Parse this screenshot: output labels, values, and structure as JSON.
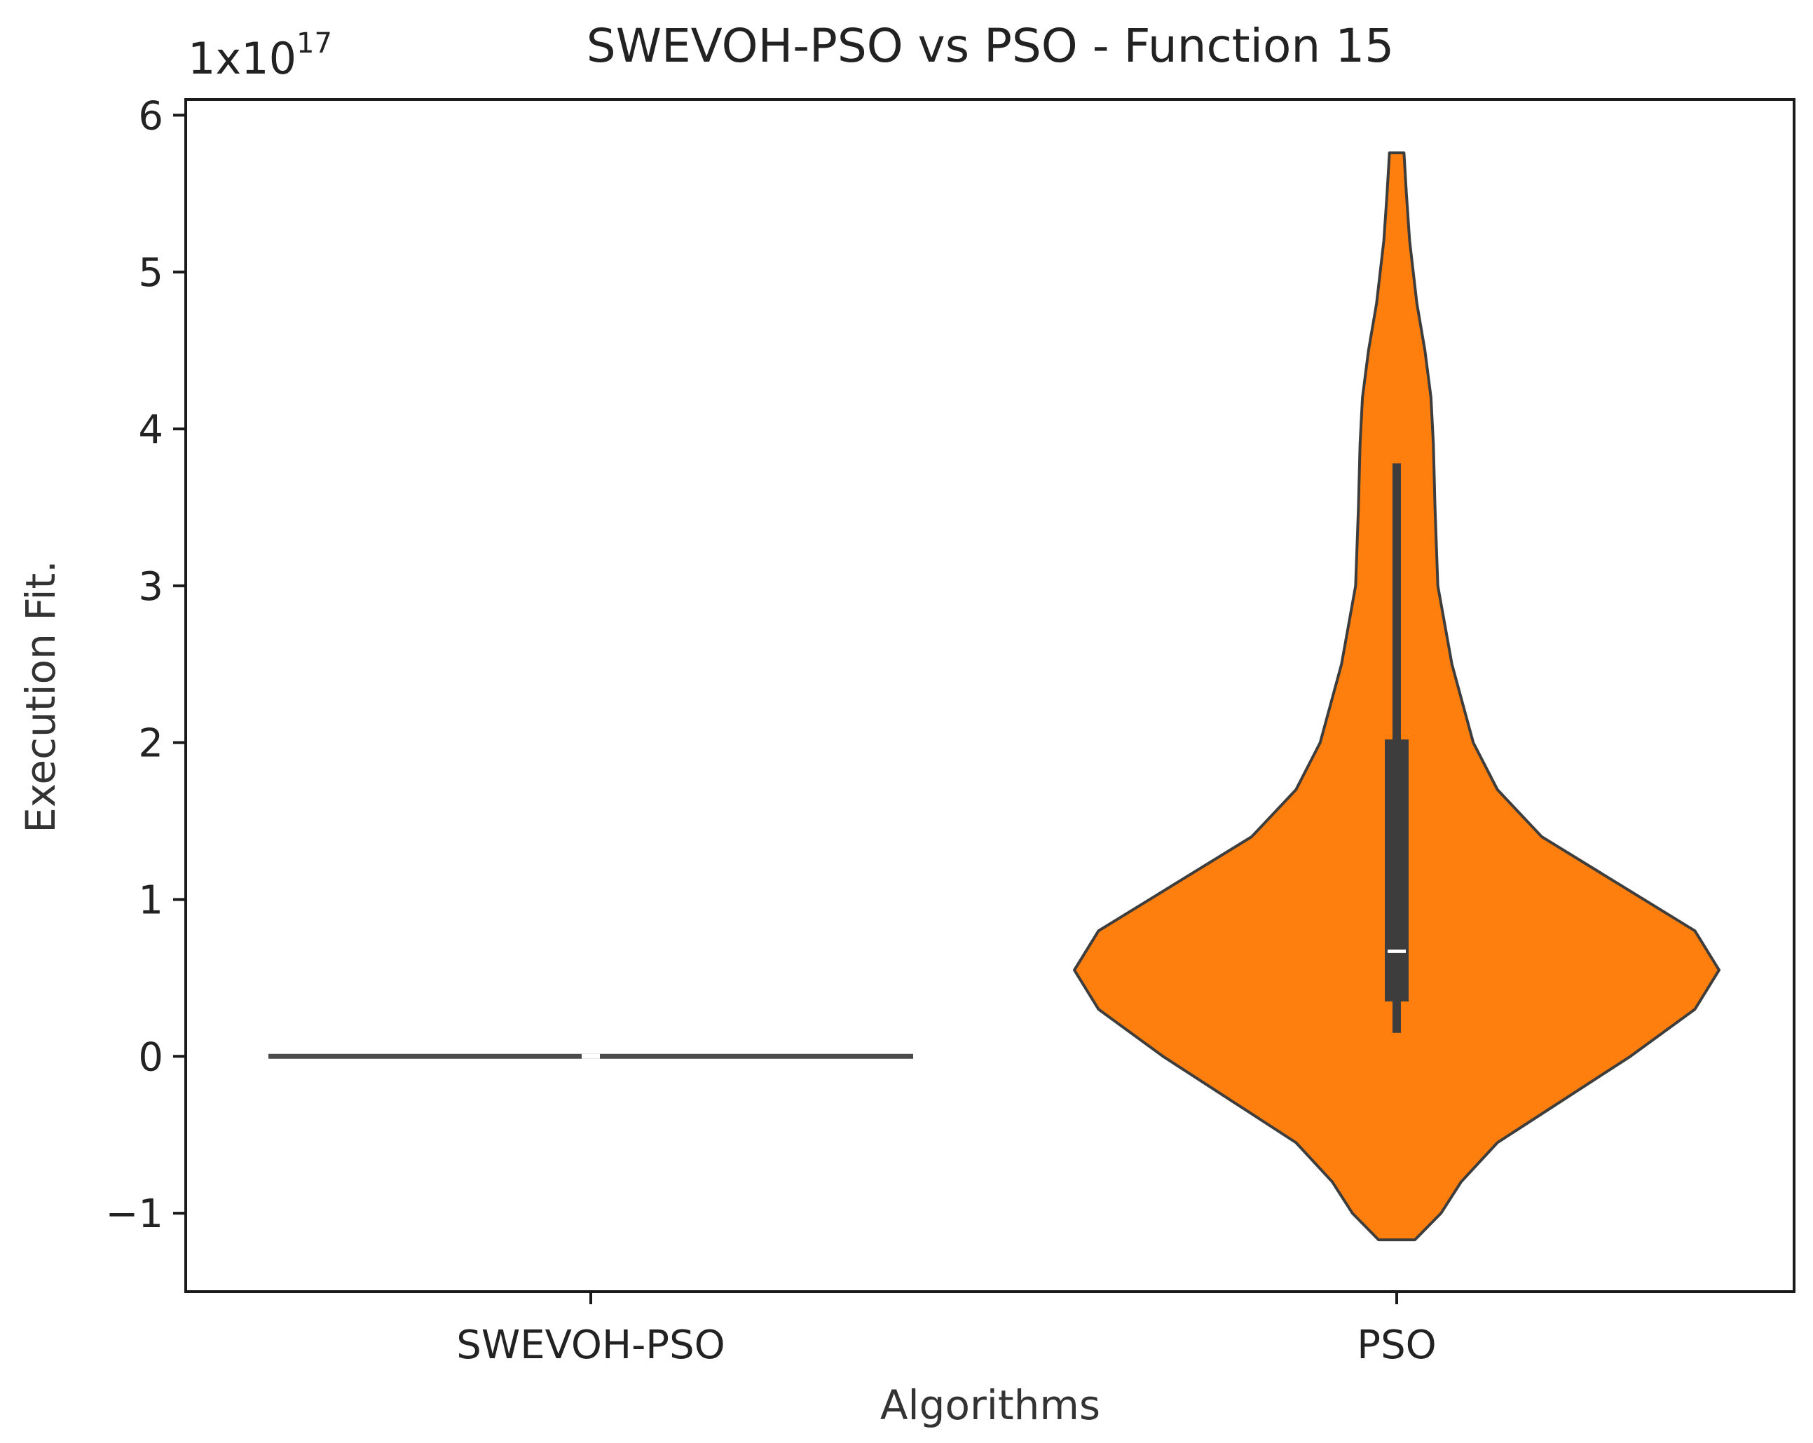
{
  "chart_data": {
    "type": "violin",
    "title": "SWEVOH-PSO vs PSO - Function 15",
    "xlabel": "Algorithms",
    "ylabel": "Execution Fit.",
    "y_multiplier_base": "1x10",
    "y_multiplier_exponent": "17",
    "ylim": [
      -1.5,
      6.1
    ],
    "yticks": [
      -1,
      0,
      1,
      2,
      3,
      4,
      5,
      6
    ],
    "ytick_labels": [
      "−1",
      "0",
      "1",
      "2",
      "3",
      "4",
      "5",
      "6"
    ],
    "categories": [
      "SWEVOH-PSO",
      "PSO"
    ],
    "series": [
      {
        "name": "SWEVOH-PSO",
        "color": "#ffffff",
        "edge_color": "#4a4a4a",
        "min": 0,
        "q1": 0,
        "median": 0,
        "q3": 0,
        "max": 0,
        "violin_min": 0,
        "violin_max": 0,
        "density_profile": [
          {
            "y": 0,
            "w": 0.8
          }
        ]
      },
      {
        "name": "PSO",
        "color": "#ff7f0e",
        "edge_color": "#3d3d3d",
        "min": 0.15,
        "q1": 0.35,
        "median": 0.67,
        "q3": 2.02,
        "max": 3.78,
        "violin_min": -1.17,
        "violin_max": 5.76,
        "density_profile": [
          {
            "y": -1.17,
            "w": 0.045
          },
          {
            "y": -1.0,
            "w": 0.11
          },
          {
            "y": -0.8,
            "w": 0.16
          },
          {
            "y": -0.55,
            "w": 0.25
          },
          {
            "y": -0.3,
            "w": 0.4
          },
          {
            "y": 0.0,
            "w": 0.58
          },
          {
            "y": 0.3,
            "w": 0.74
          },
          {
            "y": 0.55,
            "w": 0.8
          },
          {
            "y": 0.8,
            "w": 0.74
          },
          {
            "y": 1.1,
            "w": 0.55
          },
          {
            "y": 1.4,
            "w": 0.36
          },
          {
            "y": 1.7,
            "w": 0.25
          },
          {
            "y": 2.0,
            "w": 0.19
          },
          {
            "y": 2.5,
            "w": 0.137
          },
          {
            "y": 3.0,
            "w": 0.102
          },
          {
            "y": 3.5,
            "w": 0.095
          },
          {
            "y": 3.9,
            "w": 0.091
          },
          {
            "y": 4.2,
            "w": 0.085
          },
          {
            "y": 4.5,
            "w": 0.07
          },
          {
            "y": 4.8,
            "w": 0.05
          },
          {
            "y": 5.2,
            "w": 0.032
          },
          {
            "y": 5.5,
            "w": 0.024
          },
          {
            "y": 5.76,
            "w": 0.018
          }
        ]
      }
    ]
  }
}
